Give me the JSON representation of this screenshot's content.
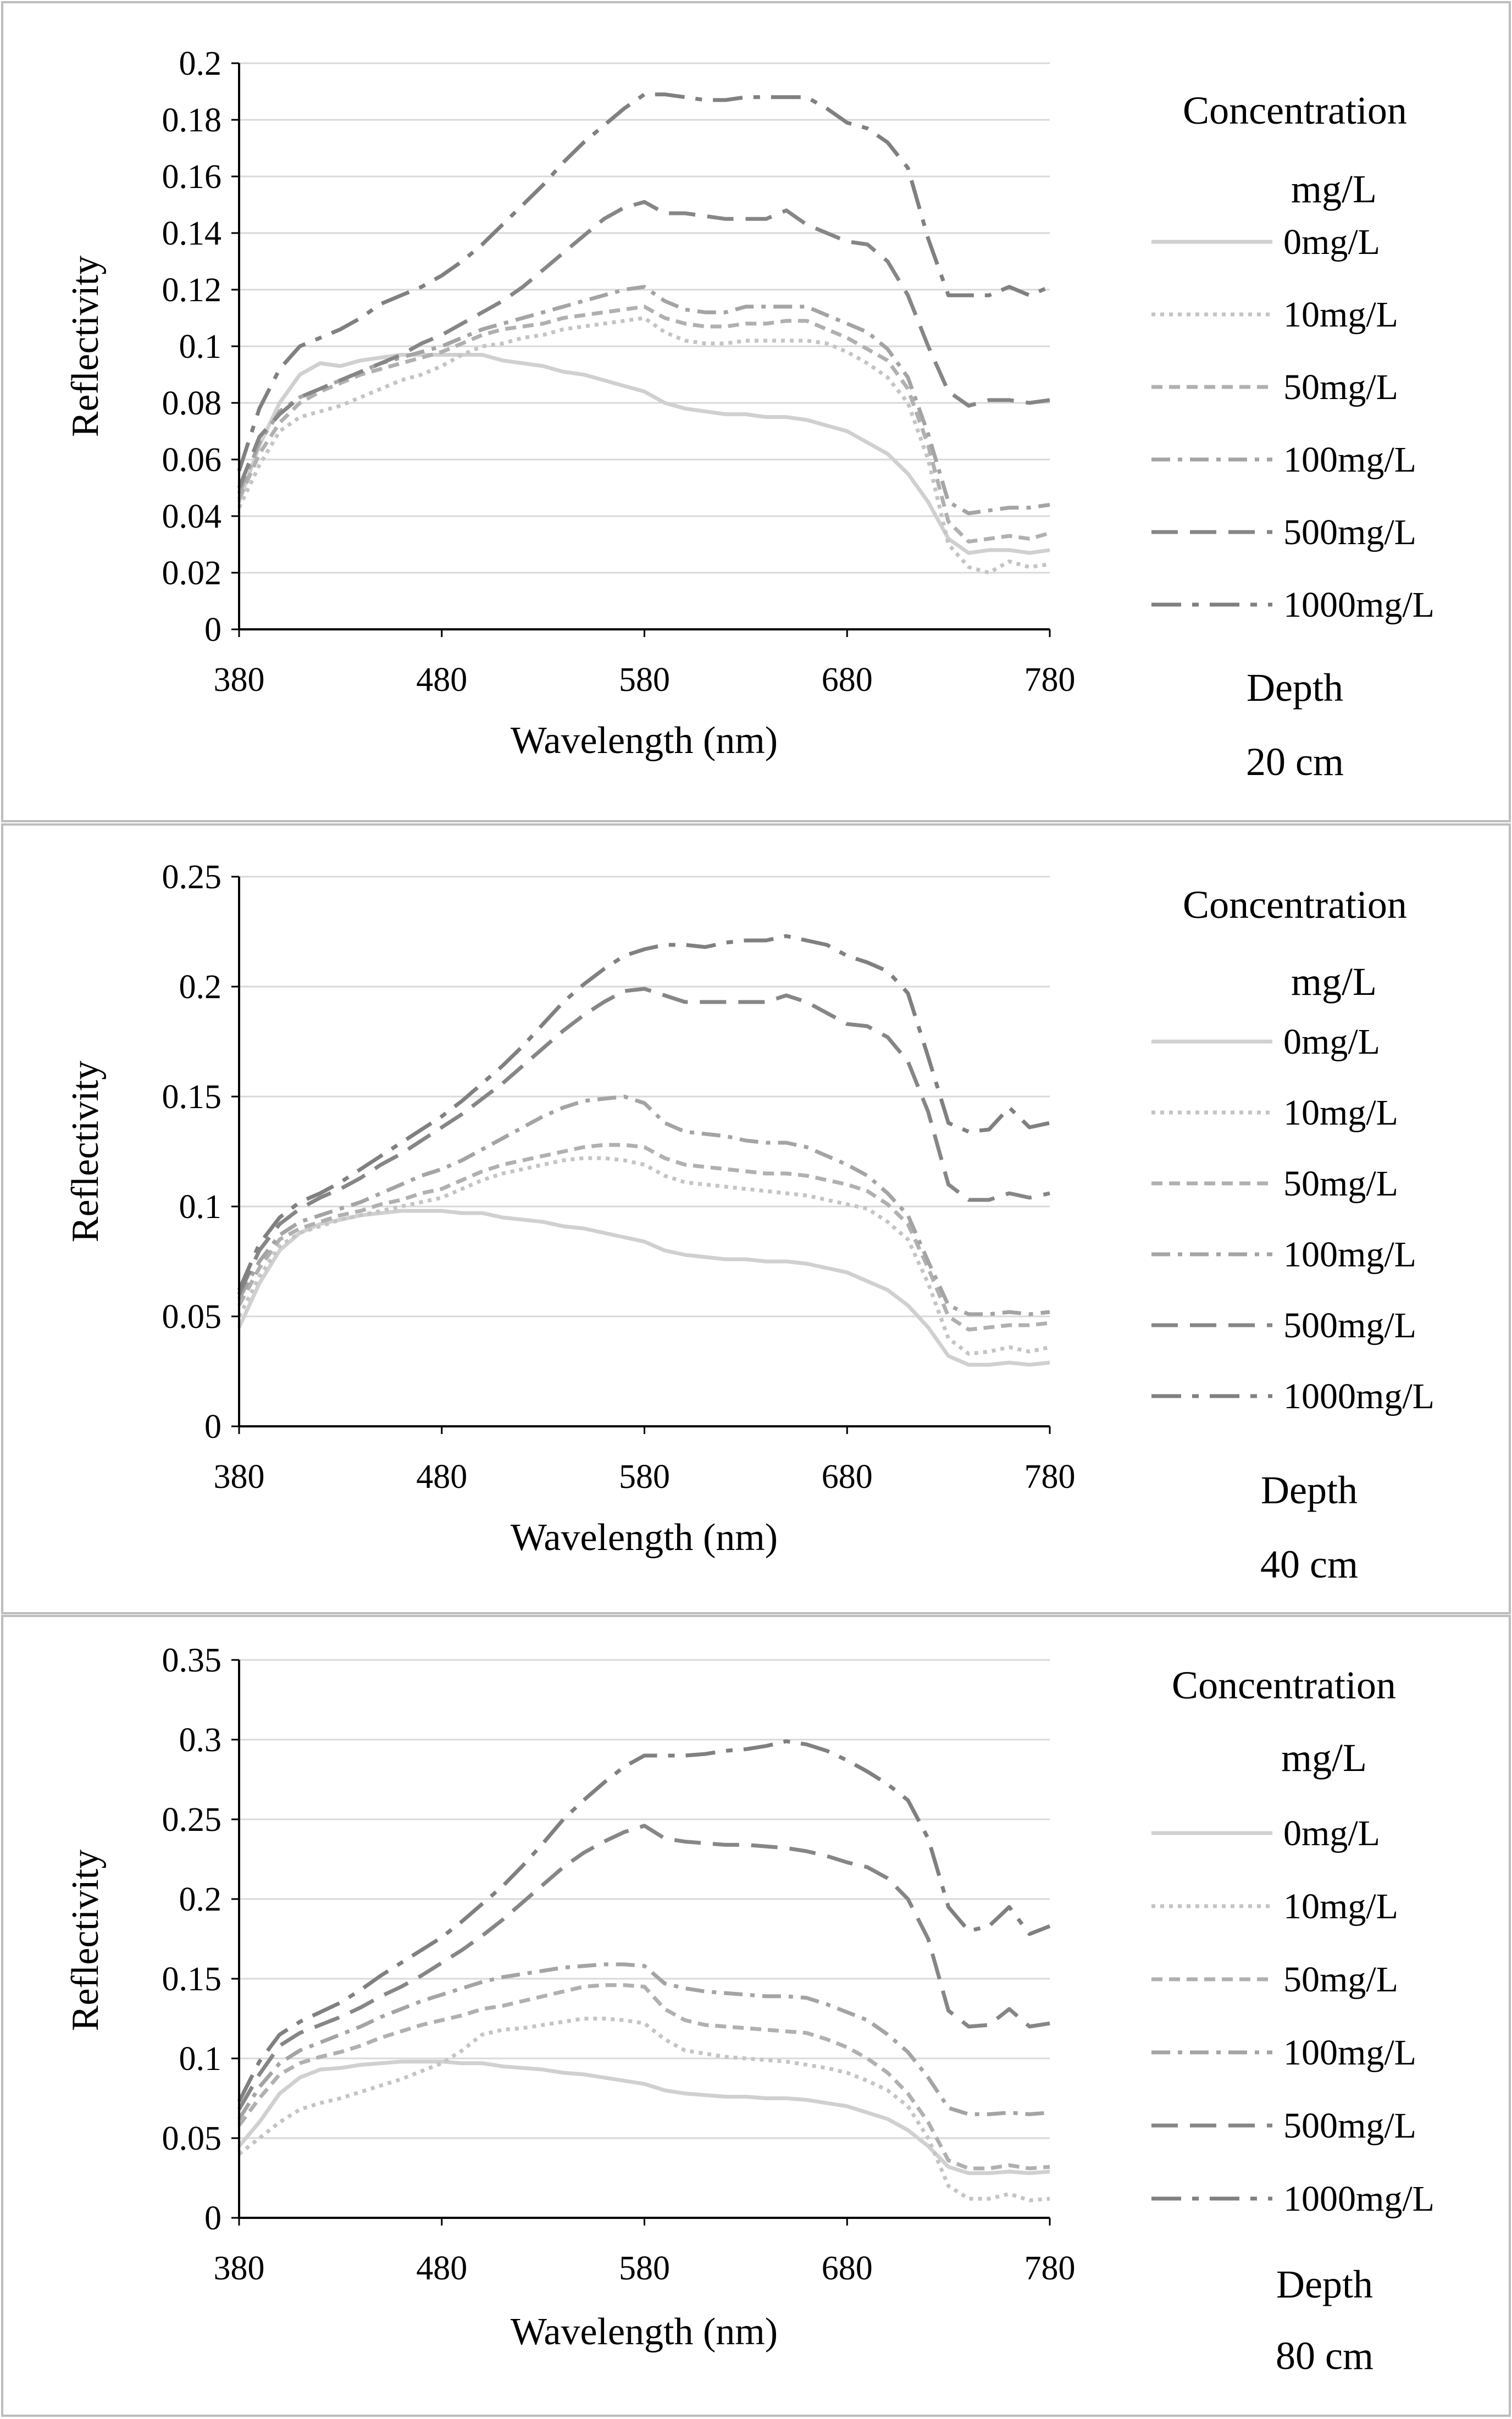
{
  "colors": {
    "0mg/L": "#d0d0d0",
    "10mg/L": "#c4c4c4",
    "50mg/L": "#b0b0b0",
    "100mg/L": "#a4a4a4",
    "500mg/L": "#868686",
    "1000mg/L": "#808080",
    "grid": "#d9d9d9",
    "frame": "#bdbdbd"
  },
  "chart_data": [
    {
      "type": "line",
      "xlabel": "Wavelength (nm)",
      "ylabel": "Reflectivity",
      "xlim": [
        380,
        780
      ],
      "ylim": [
        0,
        0.2
      ],
      "x_ticks": [
        "380",
        "480",
        "580",
        "680",
        "780"
      ],
      "y_ticks": [
        "0",
        "0.02",
        "0.04",
        "0.06",
        "0.08",
        "0.1",
        "0.12",
        "0.14",
        "0.16",
        "0.18",
        "0.2"
      ],
      "legend_title": "Concentration",
      "legend_unit": "mg/L",
      "depth_label": "Depth",
      "depth_value": "20 cm",
      "grid": true,
      "x": [
        380,
        390,
        400,
        410,
        420,
        430,
        440,
        450,
        460,
        470,
        480,
        490,
        500,
        510,
        520,
        530,
        540,
        550,
        560,
        570,
        580,
        590,
        600,
        610,
        620,
        630,
        640,
        650,
        660,
        670,
        680,
        690,
        700,
        710,
        720,
        730,
        740,
        750,
        760,
        770,
        780
      ],
      "series": [
        {
          "name": "0mg/L",
          "values": [
            0.045,
            0.065,
            0.08,
            0.09,
            0.094,
            0.093,
            0.095,
            0.096,
            0.097,
            0.097,
            0.097,
            0.097,
            0.097,
            0.095,
            0.094,
            0.093,
            0.091,
            0.09,
            0.088,
            0.086,
            0.084,
            0.08,
            0.078,
            0.077,
            0.076,
            0.076,
            0.075,
            0.075,
            0.074,
            0.072,
            0.07,
            0.066,
            0.062,
            0.055,
            0.045,
            0.032,
            0.027,
            0.028,
            0.028,
            0.027,
            0.028
          ]
        },
        {
          "name": "10mg/L",
          "values": [
            0.043,
            0.058,
            0.07,
            0.075,
            0.077,
            0.079,
            0.082,
            0.085,
            0.088,
            0.09,
            0.093,
            0.097,
            0.1,
            0.101,
            0.103,
            0.104,
            0.106,
            0.107,
            0.108,
            0.109,
            0.11,
            0.105,
            0.102,
            0.101,
            0.101,
            0.102,
            0.102,
            0.102,
            0.102,
            0.101,
            0.098,
            0.094,
            0.089,
            0.08,
            0.06,
            0.03,
            0.022,
            0.02,
            0.024,
            0.022,
            0.023
          ]
        },
        {
          "name": "50mg/L",
          "values": [
            0.046,
            0.062,
            0.073,
            0.08,
            0.084,
            0.087,
            0.09,
            0.092,
            0.094,
            0.096,
            0.098,
            0.101,
            0.104,
            0.106,
            0.107,
            0.108,
            0.11,
            0.111,
            0.112,
            0.113,
            0.114,
            0.11,
            0.108,
            0.107,
            0.107,
            0.108,
            0.108,
            0.109,
            0.109,
            0.106,
            0.103,
            0.099,
            0.095,
            0.085,
            0.065,
            0.038,
            0.031,
            0.032,
            0.033,
            0.032,
            0.034
          ]
        },
        {
          "name": "100mg/L",
          "values": [
            0.048,
            0.066,
            0.077,
            0.082,
            0.085,
            0.088,
            0.091,
            0.094,
            0.096,
            0.098,
            0.1,
            0.103,
            0.106,
            0.108,
            0.11,
            0.112,
            0.114,
            0.116,
            0.118,
            0.12,
            0.121,
            0.116,
            0.113,
            0.112,
            0.112,
            0.114,
            0.114,
            0.114,
            0.114,
            0.111,
            0.108,
            0.105,
            0.099,
            0.089,
            0.069,
            0.045,
            0.041,
            0.042,
            0.043,
            0.043,
            0.044
          ]
        },
        {
          "name": "500mg/L",
          "values": [
            0.05,
            0.068,
            0.076,
            0.082,
            0.085,
            0.088,
            0.091,
            0.094,
            0.097,
            0.101,
            0.104,
            0.108,
            0.112,
            0.116,
            0.121,
            0.127,
            0.133,
            0.139,
            0.145,
            0.149,
            0.151,
            0.147,
            0.147,
            0.146,
            0.145,
            0.145,
            0.145,
            0.148,
            0.143,
            0.14,
            0.137,
            0.136,
            0.13,
            0.118,
            0.1,
            0.084,
            0.079,
            0.081,
            0.081,
            0.08,
            0.081
          ]
        },
        {
          "name": "1000mg/L",
          "values": [
            0.056,
            0.078,
            0.092,
            0.1,
            0.103,
            0.106,
            0.11,
            0.115,
            0.118,
            0.121,
            0.125,
            0.13,
            0.136,
            0.143,
            0.15,
            0.157,
            0.165,
            0.172,
            0.178,
            0.184,
            0.189,
            0.189,
            0.188,
            0.187,
            0.187,
            0.188,
            0.188,
            0.188,
            0.188,
            0.184,
            0.179,
            0.177,
            0.172,
            0.163,
            0.138,
            0.118,
            0.118,
            0.118,
            0.121,
            0.118,
            0.121
          ]
        }
      ]
    },
    {
      "type": "line",
      "xlabel": "Wavelength (nm)",
      "ylabel": "Reflectivity",
      "xlim": [
        380,
        780
      ],
      "ylim": [
        0,
        0.25
      ],
      "x_ticks": [
        "380",
        "480",
        "580",
        "680",
        "780"
      ],
      "y_ticks": [
        "0",
        "0.05",
        "0.1",
        "0.15",
        "0.2",
        "0.25"
      ],
      "legend_title": "Concentration",
      "legend_unit": "mg/L",
      "depth_label": "Depth",
      "depth_value": "40 cm",
      "grid": true,
      "x": [
        380,
        390,
        400,
        410,
        420,
        430,
        440,
        450,
        460,
        470,
        480,
        490,
        500,
        510,
        520,
        530,
        540,
        550,
        560,
        570,
        580,
        590,
        600,
        610,
        620,
        630,
        640,
        650,
        660,
        670,
        680,
        690,
        700,
        710,
        720,
        730,
        740,
        750,
        760,
        770,
        780
      ],
      "series": [
        {
          "name": "0mg/L",
          "values": [
            0.045,
            0.065,
            0.08,
            0.088,
            0.092,
            0.094,
            0.096,
            0.097,
            0.098,
            0.098,
            0.098,
            0.097,
            0.097,
            0.095,
            0.094,
            0.093,
            0.091,
            0.09,
            0.088,
            0.086,
            0.084,
            0.08,
            0.078,
            0.077,
            0.076,
            0.076,
            0.075,
            0.075,
            0.074,
            0.072,
            0.07,
            0.066,
            0.062,
            0.055,
            0.045,
            0.032,
            0.028,
            0.028,
            0.029,
            0.028,
            0.029
          ]
        },
        {
          "name": "10mg/L",
          "values": [
            0.05,
            0.068,
            0.082,
            0.088,
            0.091,
            0.094,
            0.096,
            0.098,
            0.1,
            0.102,
            0.104,
            0.108,
            0.112,
            0.115,
            0.117,
            0.119,
            0.121,
            0.122,
            0.122,
            0.121,
            0.119,
            0.114,
            0.111,
            0.11,
            0.109,
            0.108,
            0.107,
            0.106,
            0.105,
            0.103,
            0.101,
            0.099,
            0.093,
            0.085,
            0.065,
            0.04,
            0.033,
            0.034,
            0.036,
            0.034,
            0.036
          ]
        },
        {
          "name": "50mg/L",
          "values": [
            0.055,
            0.072,
            0.085,
            0.09,
            0.093,
            0.096,
            0.098,
            0.101,
            0.103,
            0.106,
            0.108,
            0.112,
            0.116,
            0.119,
            0.121,
            0.123,
            0.125,
            0.127,
            0.128,
            0.128,
            0.127,
            0.122,
            0.119,
            0.118,
            0.117,
            0.116,
            0.115,
            0.115,
            0.114,
            0.112,
            0.11,
            0.107,
            0.101,
            0.092,
            0.072,
            0.05,
            0.044,
            0.045,
            0.046,
            0.046,
            0.047
          ]
        },
        {
          "name": "100mg/L",
          "values": [
            0.058,
            0.075,
            0.087,
            0.093,
            0.096,
            0.099,
            0.102,
            0.106,
            0.11,
            0.114,
            0.117,
            0.121,
            0.126,
            0.131,
            0.136,
            0.141,
            0.145,
            0.148,
            0.149,
            0.15,
            0.147,
            0.138,
            0.134,
            0.133,
            0.132,
            0.13,
            0.129,
            0.129,
            0.127,
            0.123,
            0.119,
            0.114,
            0.106,
            0.096,
            0.075,
            0.055,
            0.051,
            0.051,
            0.052,
            0.051,
            0.052
          ]
        },
        {
          "name": "500mg/L",
          "values": [
            0.06,
            0.08,
            0.092,
            0.099,
            0.104,
            0.108,
            0.113,
            0.119,
            0.124,
            0.13,
            0.136,
            0.142,
            0.149,
            0.156,
            0.164,
            0.172,
            0.18,
            0.187,
            0.193,
            0.198,
            0.199,
            0.196,
            0.193,
            0.193,
            0.193,
            0.193,
            0.193,
            0.196,
            0.193,
            0.188,
            0.183,
            0.182,
            0.177,
            0.166,
            0.143,
            0.11,
            0.103,
            0.103,
            0.106,
            0.104,
            0.106
          ]
        },
        {
          "name": "1000mg/L",
          "values": [
            0.062,
            0.083,
            0.095,
            0.102,
            0.106,
            0.111,
            0.117,
            0.123,
            0.129,
            0.135,
            0.141,
            0.148,
            0.156,
            0.164,
            0.173,
            0.183,
            0.193,
            0.201,
            0.208,
            0.214,
            0.217,
            0.219,
            0.219,
            0.218,
            0.22,
            0.221,
            0.221,
            0.223,
            0.221,
            0.219,
            0.214,
            0.211,
            0.207,
            0.197,
            0.168,
            0.138,
            0.134,
            0.135,
            0.145,
            0.136,
            0.138
          ]
        }
      ]
    },
    {
      "type": "line",
      "xlabel": "Wavelength (nm)",
      "ylabel": "Reflectivity",
      "xlim": [
        380,
        780
      ],
      "ylim": [
        0,
        0.35
      ],
      "x_ticks": [
        "380",
        "480",
        "580",
        "680",
        "780"
      ],
      "y_ticks": [
        "0",
        "0.05",
        "0.1",
        "0.15",
        "0.2",
        "0.25",
        "0.3",
        "0.35"
      ],
      "legend_title": "Concentration",
      "legend_unit": "mg/L",
      "depth_label": "Depth",
      "depth_value": "80 cm",
      "grid": true,
      "x": [
        380,
        390,
        400,
        410,
        420,
        430,
        440,
        450,
        460,
        470,
        480,
        490,
        500,
        510,
        520,
        530,
        540,
        550,
        560,
        570,
        580,
        590,
        600,
        610,
        620,
        630,
        640,
        650,
        660,
        670,
        680,
        690,
        700,
        710,
        720,
        730,
        740,
        750,
        760,
        770,
        780
      ],
      "series": [
        {
          "name": "0mg/L",
          "values": [
            0.045,
            0.06,
            0.078,
            0.088,
            0.093,
            0.094,
            0.096,
            0.097,
            0.098,
            0.098,
            0.098,
            0.097,
            0.097,
            0.095,
            0.094,
            0.093,
            0.091,
            0.09,
            0.088,
            0.086,
            0.084,
            0.08,
            0.078,
            0.077,
            0.076,
            0.076,
            0.075,
            0.075,
            0.074,
            0.072,
            0.07,
            0.066,
            0.062,
            0.055,
            0.045,
            0.032,
            0.028,
            0.028,
            0.029,
            0.028,
            0.029
          ]
        },
        {
          "name": "10mg/L",
          "values": [
            0.04,
            0.05,
            0.06,
            0.068,
            0.072,
            0.075,
            0.079,
            0.083,
            0.087,
            0.092,
            0.097,
            0.105,
            0.115,
            0.118,
            0.119,
            0.121,
            0.123,
            0.125,
            0.125,
            0.124,
            0.122,
            0.112,
            0.105,
            0.103,
            0.101,
            0.1,
            0.099,
            0.098,
            0.096,
            0.094,
            0.091,
            0.086,
            0.08,
            0.07,
            0.05,
            0.02,
            0.012,
            0.012,
            0.015,
            0.011,
            0.012
          ]
        },
        {
          "name": "50mg/L",
          "values": [
            0.058,
            0.075,
            0.09,
            0.097,
            0.101,
            0.104,
            0.108,
            0.113,
            0.117,
            0.121,
            0.124,
            0.127,
            0.131,
            0.133,
            0.136,
            0.139,
            0.142,
            0.145,
            0.146,
            0.146,
            0.145,
            0.131,
            0.124,
            0.121,
            0.12,
            0.119,
            0.118,
            0.117,
            0.116,
            0.112,
            0.107,
            0.1,
            0.091,
            0.078,
            0.06,
            0.036,
            0.031,
            0.031,
            0.033,
            0.031,
            0.032
          ]
        },
        {
          "name": "100mg/L",
          "values": [
            0.062,
            0.082,
            0.097,
            0.105,
            0.11,
            0.115,
            0.12,
            0.126,
            0.131,
            0.136,
            0.14,
            0.144,
            0.148,
            0.151,
            0.153,
            0.155,
            0.157,
            0.158,
            0.159,
            0.159,
            0.158,
            0.147,
            0.144,
            0.142,
            0.141,
            0.14,
            0.139,
            0.139,
            0.138,
            0.134,
            0.129,
            0.124,
            0.115,
            0.104,
            0.088,
            0.069,
            0.065,
            0.065,
            0.066,
            0.065,
            0.066
          ]
        },
        {
          "name": "500mg/L",
          "values": [
            0.068,
            0.09,
            0.108,
            0.116,
            0.121,
            0.126,
            0.132,
            0.139,
            0.145,
            0.152,
            0.16,
            0.168,
            0.177,
            0.187,
            0.198,
            0.209,
            0.22,
            0.229,
            0.236,
            0.242,
            0.246,
            0.238,
            0.236,
            0.235,
            0.234,
            0.234,
            0.233,
            0.232,
            0.23,
            0.227,
            0.223,
            0.22,
            0.213,
            0.2,
            0.175,
            0.13,
            0.12,
            0.121,
            0.131,
            0.12,
            0.122
          ]
        },
        {
          "name": "1000mg/L",
          "values": [
            0.073,
            0.098,
            0.115,
            0.123,
            0.129,
            0.135,
            0.143,
            0.152,
            0.16,
            0.168,
            0.176,
            0.186,
            0.197,
            0.208,
            0.221,
            0.235,
            0.25,
            0.262,
            0.273,
            0.283,
            0.29,
            0.29,
            0.29,
            0.291,
            0.293,
            0.294,
            0.296,
            0.299,
            0.297,
            0.293,
            0.287,
            0.28,
            0.272,
            0.262,
            0.238,
            0.195,
            0.18,
            0.183,
            0.195,
            0.178,
            0.183
          ]
        }
      ]
    }
  ]
}
